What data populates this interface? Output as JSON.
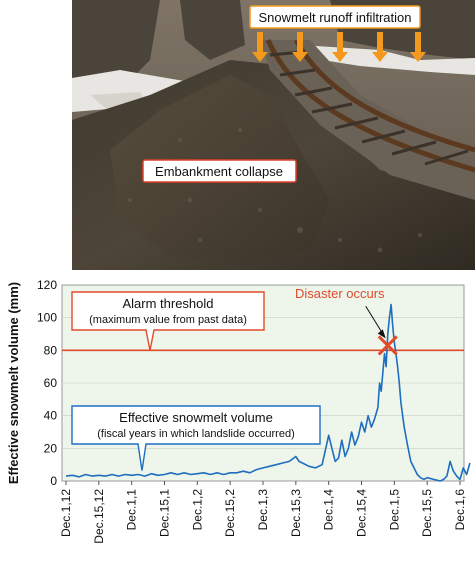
{
  "photo": {
    "callout_top": "Snowmelt runoff infiltration",
    "callout_mid": "Embankment collapse",
    "colors": {
      "arrow": "#f39a1e",
      "box_border": "#f39a1e",
      "collapse_border": "#e0402a"
    }
  },
  "chart_data": {
    "type": "line",
    "ylabel": "Effective snowmelt volume (mm)",
    "ylim": [
      0,
      120
    ],
    "yticks": [
      0,
      20,
      40,
      60,
      80,
      100,
      120
    ],
    "xticks": [
      "Dec.1,12",
      "Dec.15,12",
      "Dec.1,1",
      "Dec.15,1",
      "Dec.1,2",
      "Dec.15,2",
      "Dec.1,3",
      "Dec.15,3",
      "Dec.1,4",
      "Dec.15,4",
      "Dec.1,5",
      "Dec.15,5",
      "Dec.1,6"
    ],
    "threshold": {
      "value": 80,
      "label": "Alarm threshold",
      "sublabel": "(maximum value from past data)",
      "color": "#e34a2b"
    },
    "series": [
      {
        "label": "Effective snowmelt volume",
        "sublabel": "(fiscal years in which landslide occurred)",
        "color": "#1f6ec0",
        "points": [
          [
            0.0,
            3
          ],
          [
            0.2,
            3.5
          ],
          [
            0.4,
            2.5
          ],
          [
            0.6,
            4
          ],
          [
            0.8,
            3
          ],
          [
            1.0,
            3.5
          ],
          [
            1.2,
            3
          ],
          [
            1.4,
            4
          ],
          [
            1.6,
            3
          ],
          [
            1.8,
            4
          ],
          [
            2.0,
            3.5
          ],
          [
            2.2,
            4
          ],
          [
            2.4,
            3
          ],
          [
            2.6,
            4.5
          ],
          [
            2.8,
            3.5
          ],
          [
            3.0,
            4
          ],
          [
            3.2,
            5
          ],
          [
            3.4,
            4
          ],
          [
            3.6,
            5
          ],
          [
            3.8,
            4
          ],
          [
            4.0,
            4.5
          ],
          [
            4.2,
            5
          ],
          [
            4.4,
            4
          ],
          [
            4.6,
            5
          ],
          [
            4.8,
            4
          ],
          [
            5.0,
            5
          ],
          [
            5.2,
            5
          ],
          [
            5.4,
            6
          ],
          [
            5.6,
            5
          ],
          [
            5.8,
            7
          ],
          [
            6.0,
            8
          ],
          [
            6.2,
            9
          ],
          [
            6.4,
            10
          ],
          [
            6.6,
            11
          ],
          [
            6.8,
            12
          ],
          [
            7.0,
            15
          ],
          [
            7.1,
            12
          ],
          [
            7.2,
            11
          ],
          [
            7.4,
            9
          ],
          [
            7.6,
            8
          ],
          [
            7.8,
            10
          ],
          [
            8.0,
            28
          ],
          [
            8.1,
            20
          ],
          [
            8.2,
            12
          ],
          [
            8.3,
            14
          ],
          [
            8.4,
            25
          ],
          [
            8.5,
            15
          ],
          [
            8.6,
            20
          ],
          [
            8.7,
            30
          ],
          [
            8.8,
            22
          ],
          [
            8.9,
            27
          ],
          [
            9.0,
            36
          ],
          [
            9.1,
            30
          ],
          [
            9.2,
            40
          ],
          [
            9.3,
            33
          ],
          [
            9.4,
            38
          ],
          [
            9.5,
            45
          ],
          [
            9.55,
            60
          ],
          [
            9.6,
            55
          ],
          [
            9.7,
            78
          ],
          [
            9.75,
            70
          ],
          [
            9.8,
            90
          ],
          [
            9.85,
            100
          ],
          [
            9.9,
            108
          ],
          [
            9.95,
            95
          ],
          [
            10.0,
            85
          ],
          [
            10.05,
            78
          ],
          [
            10.1,
            70
          ],
          [
            10.15,
            60
          ],
          [
            10.2,
            48
          ],
          [
            10.3,
            33
          ],
          [
            10.4,
            22
          ],
          [
            10.5,
            12
          ],
          [
            10.6,
            8
          ],
          [
            10.7,
            4
          ],
          [
            10.8,
            2
          ],
          [
            10.9,
            1
          ],
          [
            11.0,
            2
          ],
          [
            11.2,
            1
          ],
          [
            11.4,
            0
          ],
          [
            11.5,
            1
          ],
          [
            11.6,
            3
          ],
          [
            11.7,
            12
          ],
          [
            11.8,
            6
          ],
          [
            11.9,
            3
          ],
          [
            12.0,
            1
          ],
          [
            12.1,
            8
          ],
          [
            12.2,
            4
          ],
          [
            12.3,
            11
          ]
        ]
      }
    ],
    "annotation": {
      "text": "Disaster occurs",
      "x": 9.8,
      "y": 83,
      "color": "#e34a2b"
    }
  }
}
